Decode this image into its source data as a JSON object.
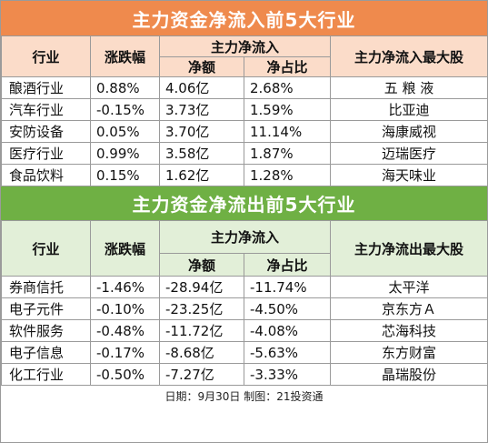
{
  "inflow": {
    "title": "主力资金净流入前5大行业",
    "headers": {
      "industry": "行业",
      "change": "涨跌幅",
      "group": "主力净流入",
      "amount": "净额",
      "ratio": "净占比",
      "top_stock": "主力净流入最大股"
    },
    "rows": [
      {
        "industry": "酿酒行业",
        "change": "0.88%",
        "amount": "4.06亿",
        "ratio": "2.68%",
        "stock": "五 粮 液"
      },
      {
        "industry": "汽车行业",
        "change": "-0.15%",
        "amount": "3.73亿",
        "ratio": "1.59%",
        "stock": "比亚迪"
      },
      {
        "industry": "安防设备",
        "change": "0.05%",
        "amount": "3.70亿",
        "ratio": "11.14%",
        "stock": "海康威视"
      },
      {
        "industry": "医疗行业",
        "change": "0.99%",
        "amount": "3.58亿",
        "ratio": "1.87%",
        "stock": "迈瑞医疗"
      },
      {
        "industry": "食品饮料",
        "change": "0.15%",
        "amount": "1.62亿",
        "ratio": "1.28%",
        "stock": "海天味业"
      }
    ]
  },
  "outflow": {
    "title": "主力资金净流出前5大行业",
    "headers": {
      "industry": "行业",
      "change": "涨跌幅",
      "group": "主力净流入",
      "amount": "净额",
      "ratio": "净占比",
      "top_stock": "主力净流出最大股"
    },
    "rows": [
      {
        "industry": "券商信托",
        "change": "-1.46%",
        "amount": "-28.94亿",
        "ratio": "-11.74%",
        "stock": "太平洋"
      },
      {
        "industry": "电子元件",
        "change": "-0.10%",
        "amount": "-23.25亿",
        "ratio": "-4.50%",
        "stock": "京东方Ａ"
      },
      {
        "industry": "软件服务",
        "change": "-0.48%",
        "amount": "-11.72亿",
        "ratio": "-4.08%",
        "stock": "芯海科技"
      },
      {
        "industry": "电子信息",
        "change": "-0.17%",
        "amount": "-8.68亿",
        "ratio": "-5.63%",
        "stock": "东方财富"
      },
      {
        "industry": "化工行业",
        "change": "-0.50%",
        "amount": "-7.27亿",
        "ratio": "-3.33%",
        "stock": "晶瑞股份"
      }
    ]
  },
  "footer": "日期：9月30日 制图：21投资通",
  "colors": {
    "inflow_banner": "#ef8a4d",
    "inflow_header": "#fbdcc9",
    "outflow_banner": "#6fb044",
    "outflow_header": "#e2efd8"
  }
}
